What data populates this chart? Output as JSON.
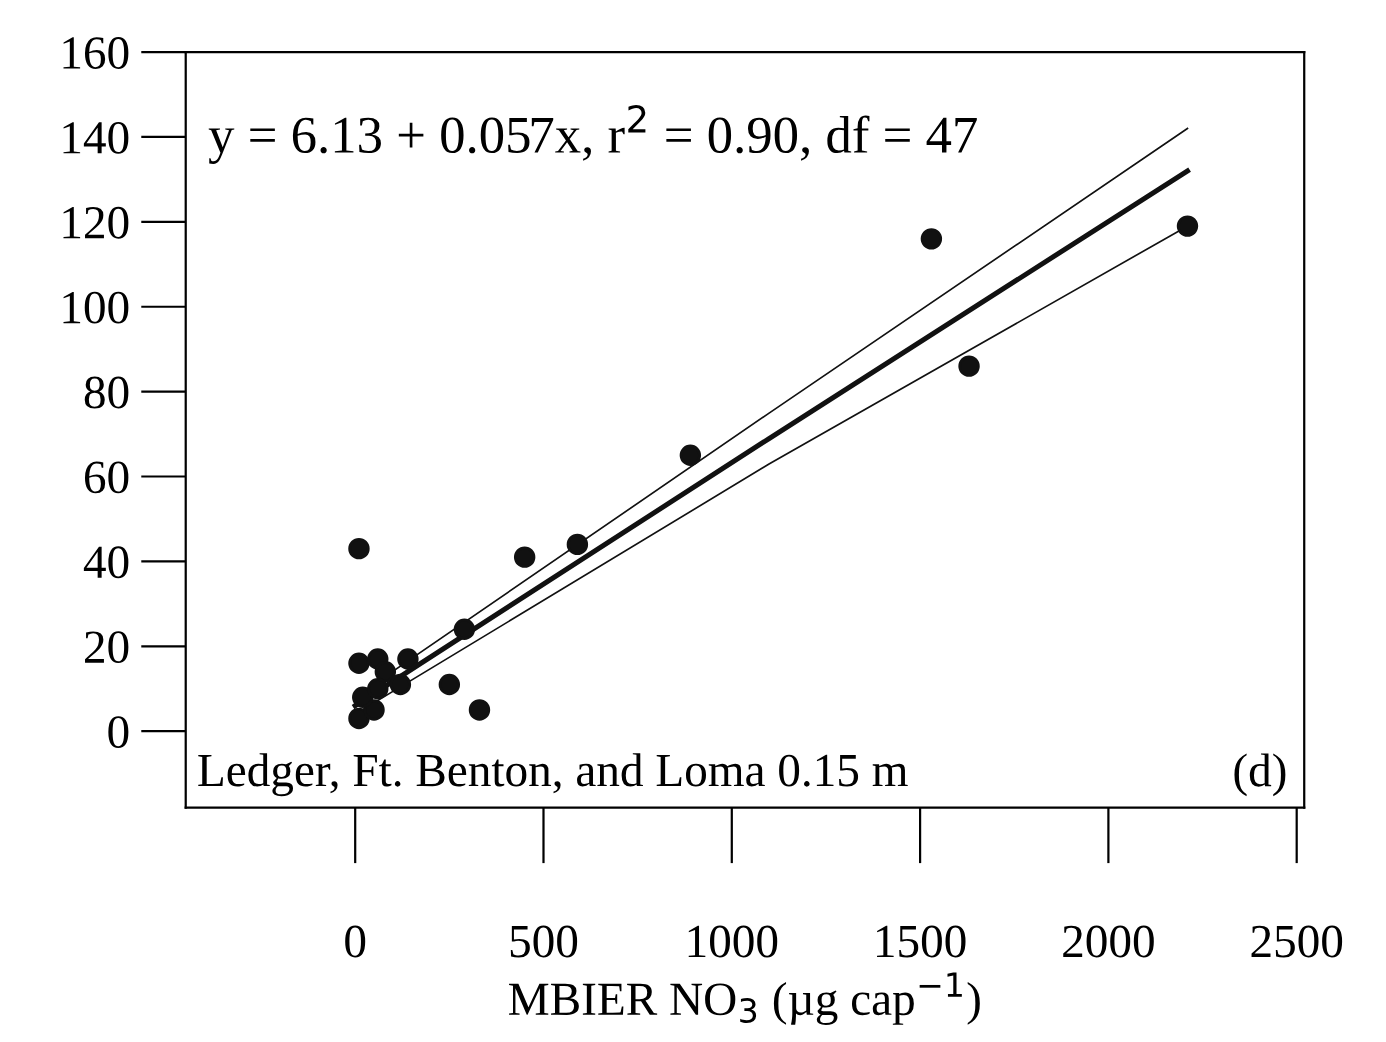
{
  "chart_data": {
    "type": "scatter",
    "xlabel": "MBIER NO$_{3}$ (µg cap$^{−1}$)",
    "xlim": [
      -450,
      2520
    ],
    "xticks": [
      0,
      500,
      1000,
      1500,
      2000,
      2500
    ],
    "ylim": [
      -18,
      160
    ],
    "yticks": [
      0,
      20,
      40,
      60,
      80,
      100,
      120,
      140,
      160
    ],
    "grid": false,
    "legend": false,
    "series": [
      {
        "marker": "circle",
        "color": "#111111",
        "x": [
          1530,
          2210,
          1630,
          890,
          590,
          450,
          10,
          290,
          10,
          60,
          140,
          80,
          120,
          250,
          330,
          10,
          50,
          20,
          60
        ],
        "values": [
          116,
          119,
          86,
          65,
          44,
          41,
          43,
          24,
          16,
          17,
          17,
          14,
          11,
          11,
          5,
          3,
          5,
          8,
          10
        ]
      },
      {
        "type": "line",
        "color": "#111111",
        "x": [
          0,
          1100,
          2210
        ],
        "values": [
          6,
          69,
          132
        ]
      },
      {
        "type": "line",
        "color": "#111111",
        "x": [
          0,
          1100,
          2210
        ],
        "values": [
          4,
          63,
          119
        ]
      },
      {
        "type": "line",
        "color": "#111111",
        "x": [
          0,
          1100,
          2210
        ],
        "values": [
          8,
          75,
          142
        ]
      }
    ],
    "annotations": [
      "y = 6.13 + 0.057x, r$^{2}$ = 0.90, df = 47",
      "Ledger, Ft. Benton, and Loma 0.15 m",
      "(d)"
    ]
  }
}
